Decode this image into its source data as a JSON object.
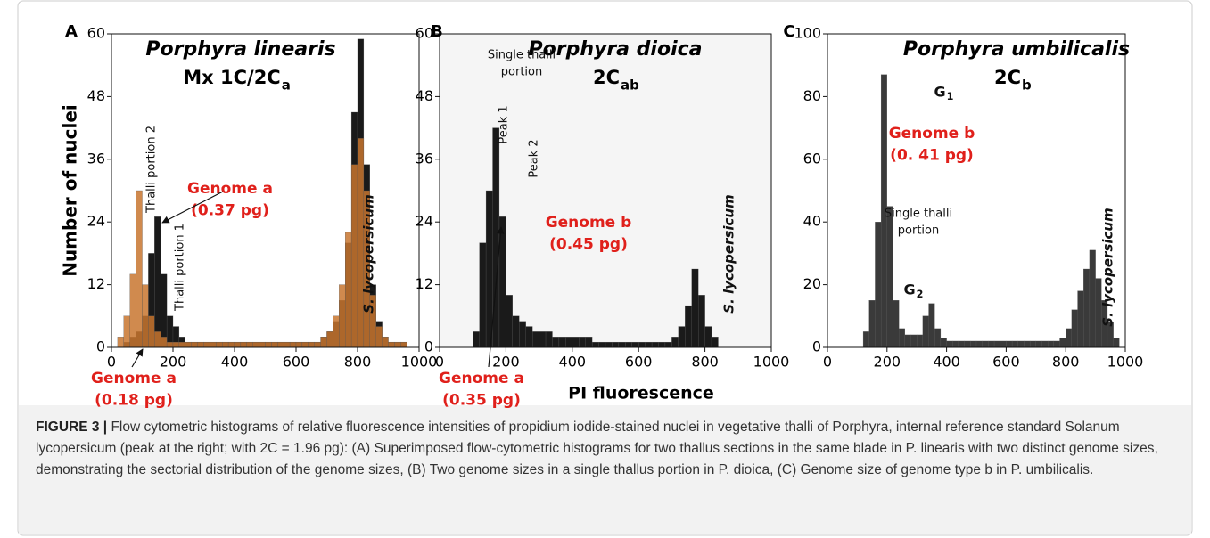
{
  "chart_data": [
    {
      "type": "histogram",
      "panel": "A",
      "title": "Porphyra linearis",
      "subtitle": "Mx 1C/2C",
      "subtitle_sub": "a",
      "ylabel": "Number of nuclei",
      "bins": [
        0,
        20,
        40,
        60,
        80,
        100,
        120,
        140,
        160,
        180,
        200,
        220,
        240,
        260,
        280,
        300,
        320,
        340,
        360,
        380,
        400,
        420,
        440,
        460,
        480,
        500,
        520,
        540,
        560,
        580,
        600,
        620,
        640,
        660,
        680,
        700,
        720,
        740,
        760,
        780,
        800,
        820,
        840,
        860,
        880,
        900,
        920,
        940,
        960,
        980,
        1000
      ],
      "series": [
        {
          "color": "#1a1a1a",
          "values": [
            0,
            0,
            1,
            2,
            3,
            6,
            18,
            25,
            14,
            6,
            4,
            2,
            1,
            1,
            1,
            1,
            1,
            1,
            1,
            1,
            1,
            1,
            1,
            1,
            1,
            1,
            1,
            1,
            1,
            1,
            1,
            1,
            1,
            1,
            2,
            3,
            5,
            9,
            20,
            45,
            59,
            35,
            12,
            5,
            2,
            1,
            1,
            1,
            0,
            0
          ]
        },
        {
          "color": "#c8752f",
          "values": [
            0,
            2,
            6,
            14,
            30,
            12,
            6,
            3,
            2,
            1,
            1,
            1,
            1,
            1,
            1,
            1,
            1,
            1,
            1,
            1,
            1,
            1,
            1,
            1,
            1,
            1,
            1,
            1,
            1,
            1,
            1,
            1,
            1,
            1,
            2,
            3,
            6,
            12,
            22,
            35,
            40,
            30,
            10,
            4,
            2,
            1,
            1,
            1,
            0,
            0
          ]
        }
      ],
      "xlim": [
        0,
        1000
      ],
      "xticks": [
        0,
        200,
        400,
        600,
        800,
        1000
      ],
      "ylim": [
        0,
        60
      ],
      "yticks": [
        0,
        12,
        24,
        36,
        48,
        60
      ],
      "annotations": [
        {
          "lines": [
            "Thalli portion 2"
          ],
          "color": "#111111"
        },
        {
          "lines": [
            "Thalli portion 1"
          ],
          "color": "#111111"
        },
        {
          "lines": [
            "Genome a",
            "(0.37 pg)"
          ],
          "color": "#e0201b"
        },
        {
          "lines": [
            "Genome a",
            "(0.18 pg)"
          ],
          "color": "#e0201b"
        },
        {
          "lines": [
            "S. lycopersicum"
          ],
          "color": "#111111"
        }
      ]
    },
    {
      "type": "histogram",
      "panel": "B",
      "title": "Porphyra dioica",
      "subtitle": "2C",
      "subtitle_sub": "ab",
      "xlabel": "PI fluorescence",
      "background": "#f5f5f5",
      "bins": [
        0,
        20,
        40,
        60,
        80,
        100,
        120,
        140,
        160,
        180,
        200,
        220,
        240,
        260,
        280,
        300,
        320,
        340,
        360,
        380,
        400,
        420,
        440,
        460,
        480,
        500,
        520,
        540,
        560,
        580,
        600,
        620,
        640,
        660,
        680,
        700,
        720,
        740,
        760,
        780,
        800,
        820,
        840,
        860,
        880,
        900,
        920,
        940,
        960,
        980,
        1000
      ],
      "series": [
        {
          "color": "#1a1a1a",
          "values": [
            0,
            0,
            0,
            0,
            0,
            3,
            20,
            30,
            42,
            25,
            10,
            6,
            5,
            4,
            3,
            3,
            3,
            2,
            2,
            2,
            2,
            2,
            2,
            1,
            1,
            1,
            1,
            1,
            1,
            1,
            1,
            1,
            1,
            1,
            1,
            2,
            4,
            8,
            15,
            10,
            4,
            2,
            0,
            0,
            0,
            0,
            0,
            0,
            0,
            0
          ]
        }
      ],
      "xlim": [
        0,
        1000
      ],
      "xticks": [
        0,
        200,
        400,
        600,
        800,
        1000
      ],
      "ylim": [
        0,
        60
      ],
      "yticks": [
        0,
        12,
        24,
        36,
        48,
        60
      ],
      "annotations": [
        {
          "lines": [
            "Single thalli",
            "portion"
          ],
          "color": "#111111"
        },
        {
          "lines": [
            "Peak 1"
          ],
          "color": "#111111"
        },
        {
          "lines": [
            "Peak 2"
          ],
          "color": "#111111"
        },
        {
          "lines": [
            "Genome b",
            "(0.45 pg)"
          ],
          "color": "#e0201b"
        },
        {
          "lines": [
            "Genome a",
            "(0.35 pg)"
          ],
          "color": "#e0201b"
        },
        {
          "lines": [
            "S. lycopersicum"
          ],
          "color": "#111111"
        }
      ]
    },
    {
      "type": "histogram",
      "panel": "C",
      "title": "Porphyra umbilicalis",
      "subtitle": "2C",
      "subtitle_sub": "b",
      "bins": [
        0,
        20,
        40,
        60,
        80,
        100,
        120,
        140,
        160,
        180,
        200,
        220,
        240,
        260,
        280,
        300,
        320,
        340,
        360,
        380,
        400,
        420,
        440,
        460,
        480,
        500,
        520,
        540,
        560,
        580,
        600,
        620,
        640,
        660,
        680,
        700,
        720,
        740,
        760,
        780,
        800,
        820,
        840,
        860,
        880,
        900,
        920,
        940,
        960,
        980,
        1000
      ],
      "series": [
        {
          "color": "#3a3a3a",
          "values": [
            0,
            0,
            0,
            0,
            0,
            0,
            5,
            15,
            40,
            87,
            45,
            15,
            6,
            4,
            4,
            4,
            10,
            14,
            6,
            3,
            2,
            2,
            2,
            2,
            2,
            2,
            2,
            2,
            2,
            2,
            2,
            2,
            2,
            2,
            2,
            2,
            2,
            2,
            2,
            3,
            6,
            12,
            18,
            25,
            31,
            22,
            15,
            8,
            3,
            0
          ]
        }
      ],
      "xlim": [
        0,
        1000
      ],
      "xticks": [
        0,
        200,
        400,
        600,
        800,
        1000
      ],
      "ylim": [
        0,
        100
      ],
      "yticks": [
        0,
        20,
        40,
        60,
        80,
        100
      ],
      "annotations": [
        {
          "lines": [
            "G"
          ],
          "sub": "1",
          "color": "#111111"
        },
        {
          "lines": [
            "G"
          ],
          "sub": "2",
          "color": "#111111"
        },
        {
          "lines": [
            "Genome b",
            "(0. 41 pg)"
          ],
          "color": "#e0201b"
        },
        {
          "lines": [
            "Single thalli",
            "portion"
          ],
          "color": "#111111"
        },
        {
          "lines": [
            "S. lycopersicum"
          ],
          "color": "#111111"
        }
      ]
    }
  ],
  "caption_label": "FIGURE 3 |",
  "caption": "Flow cytometric histograms of relative fluorescence intensities of propidium iodide-stained nuclei in vegetative thalli of Porphyra, internal reference standard Solanum lycopersicum (peak at the right; with 2C = 1.96 pg): (A) Superimposed flow-cytometric histograms for two thallus sections in the same blade in P. linearis with two distinct genome sizes, demonstrating the sectorial distribution of the genome sizes, (B) Two genome sizes in a single thallus portion in P. dioica, (C) Genome size of genome type b in P. umbilicalis."
}
